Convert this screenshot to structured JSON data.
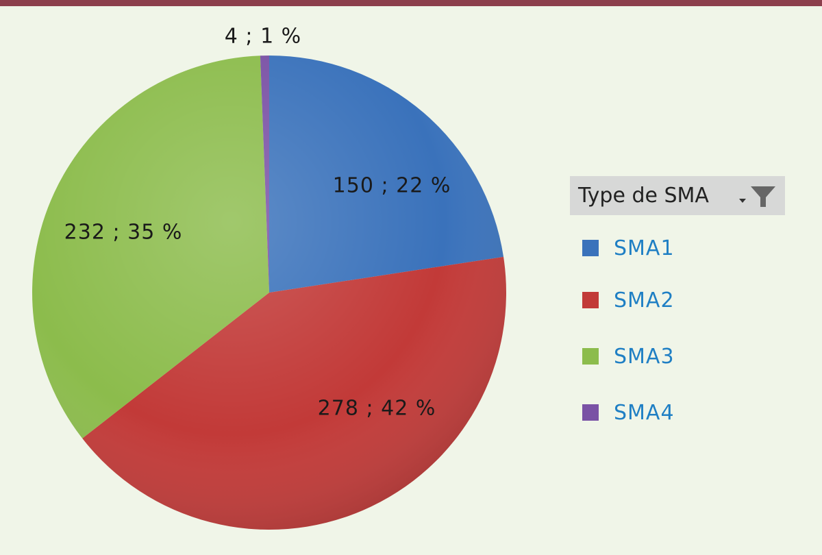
{
  "chart_data": {
    "type": "pie",
    "title": "",
    "slices": [
      {
        "name": "SMA1",
        "value": 150,
        "percent": 22,
        "label": "150 ; 22 %",
        "color": "#3a72bb"
      },
      {
        "name": "SMA2",
        "value": 278,
        "percent": 42,
        "label": "278 ; 42 %",
        "color": "#c23a38"
      },
      {
        "name": "SMA3",
        "value": 232,
        "percent": 35,
        "label": "232 ; 35 %",
        "color": "#8cbc4c"
      },
      {
        "name": "SMA4",
        "value": 4,
        "percent": 1,
        "label": "4 ; 1 %",
        "color": "#7a52a5"
      }
    ],
    "legend_placement": "right"
  },
  "legend": {
    "title": "Type de SMA",
    "filter_icon": "filter-icon",
    "dropdown_icon": "dropdown-arrow-icon",
    "items": [
      {
        "label": "SMA1",
        "color": "#3a72bb"
      },
      {
        "label": "SMA2",
        "color": "#c23a38"
      },
      {
        "label": "SMA3",
        "color": "#8cbc4c"
      },
      {
        "label": "SMA4",
        "color": "#7a52a5"
      }
    ]
  },
  "colors": {
    "top_bar": "#8c3f4c",
    "background": "#f0f5e8",
    "legend_text": "#1f7fc4"
  }
}
